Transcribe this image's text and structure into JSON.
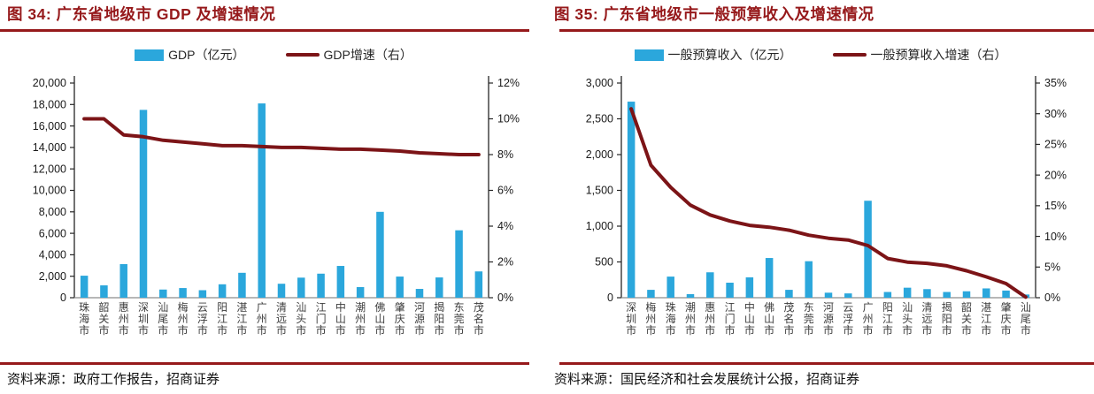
{
  "colors": {
    "bar": "#2BA7DC",
    "line": "#7C1417",
    "accent_red": "#96191B",
    "axis_line": "#262626",
    "baseline": "#8C8C8C",
    "axis_text": "#1A1A1A",
    "category_text": "#3D3D3D"
  },
  "chart_data": [
    {
      "type": "bar",
      "subtype": "combo-bar-line",
      "title": "图 34: 广东省地级市 GDP 及增速情况",
      "legend_position": "top",
      "grid": false,
      "categories": [
        "珠海市",
        "韶关市",
        "惠州市",
        "深圳市",
        "汕尾市",
        "梅州市",
        "云浮市",
        "阳江市",
        "湛江市",
        "广州市",
        "清远市",
        "汕头市",
        "江门市",
        "中山市",
        "潮州市",
        "佛山市",
        "肇庆市",
        "河源市",
        "揭阳市",
        "东莞市",
        "茂名市"
      ],
      "series": [
        {
          "name": "GDP（亿元）",
          "kind": "bar",
          "axis": "left",
          "values": [
            2050,
            1150,
            3130,
            17500,
            760,
            900,
            700,
            1250,
            2320,
            18100,
            1300,
            1870,
            2240,
            2960,
            990,
            8000,
            1970,
            820,
            1890,
            6280,
            2450
          ]
        },
        {
          "name": "GDP增速（右）",
          "kind": "line",
          "axis": "right",
          "values": [
            10.0,
            10.0,
            9.1,
            9.0,
            8.8,
            8.7,
            8.6,
            8.5,
            8.5,
            8.45,
            8.4,
            8.4,
            8.35,
            8.3,
            8.3,
            8.25,
            8.2,
            8.1,
            8.05,
            8.0,
            8.0
          ]
        }
      ],
      "left_axis": {
        "min": 0,
        "max": 20000,
        "step": 2000
      },
      "right_axis": {
        "min": 0,
        "max": 12,
        "step": 2,
        "unit": "%"
      },
      "source": "资料来源：政府工作报告，招商证券"
    },
    {
      "type": "bar",
      "subtype": "combo-bar-line",
      "title": "图 35: 广东省地级市一般预算收入及增速情况",
      "legend_position": "top",
      "grid": false,
      "categories": [
        "深圳市",
        "梅州市",
        "珠海市",
        "潮州市",
        "惠州市",
        "江门市",
        "中山市",
        "佛山市",
        "茂名市",
        "东莞市",
        "河源市",
        "云浮市",
        "广州市",
        "阳江市",
        "汕头市",
        "清远市",
        "揭阳市",
        "韶关市",
        "湛江市",
        "肇庆市",
        "汕尾市"
      ],
      "series": [
        {
          "name": "一般预算收入（亿元）",
          "kind": "bar",
          "axis": "left",
          "values": [
            2740,
            110,
            295,
            50,
            355,
            210,
            285,
            555,
            110,
            510,
            70,
            60,
            1355,
            80,
            140,
            120,
            80,
            90,
            130,
            100,
            45
          ]
        },
        {
          "name": "一般预算收入增速（右）",
          "kind": "line",
          "axis": "right",
          "values": [
            30.8,
            21.6,
            18.0,
            15.1,
            13.5,
            12.5,
            11.8,
            11.5,
            11.0,
            10.2,
            9.7,
            9.4,
            8.5,
            6.4,
            5.8,
            5.6,
            5.2,
            4.4,
            3.4,
            2.3,
            0.1
          ]
        }
      ],
      "left_axis": {
        "min": 0,
        "max": 3000,
        "step": 500
      },
      "right_axis": {
        "min": 0,
        "max": 35,
        "step": 5,
        "unit": "%"
      },
      "source": "资料来源：国民经济和社会发展统计公报，招商证券"
    }
  ]
}
